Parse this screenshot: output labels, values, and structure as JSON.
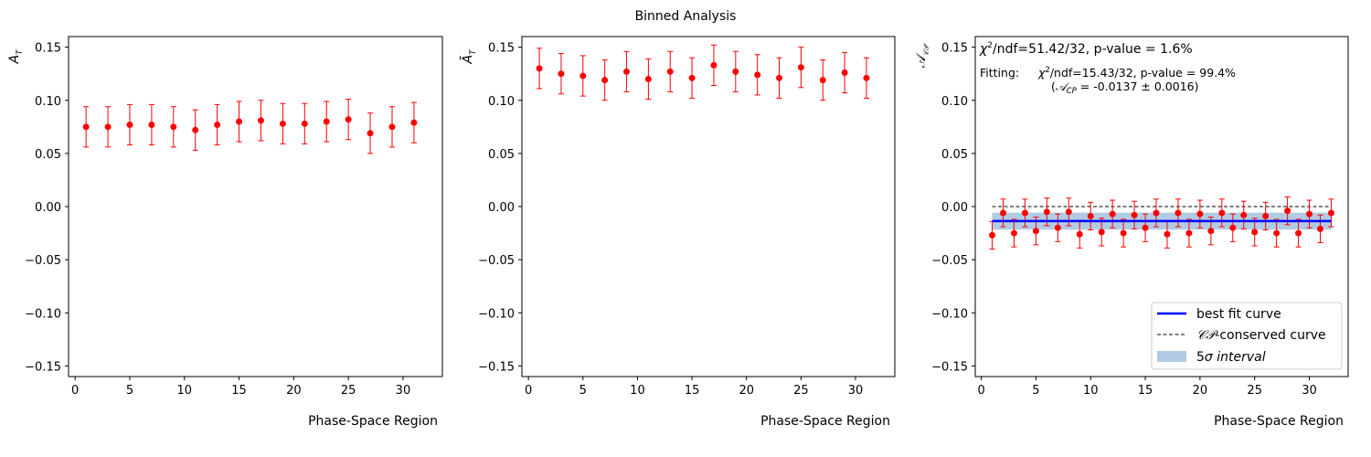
{
  "title": "Binned Analysis",
  "colors": {
    "points": "#ff0000",
    "fit": "#0000ff",
    "band": "#b0cbe3",
    "conserved": "#000000"
  },
  "panels": [
    {
      "id": "AT",
      "ylabel": "A_T",
      "xlabel": "Phase-Space Region"
    },
    {
      "id": "AbarT",
      "ylabel": "Ā_T",
      "xlabel": "Phase-Space Region"
    },
    {
      "id": "ACP",
      "ylabel": "𝒜_CP",
      "xlabel": "Phase-Space Region"
    }
  ],
  "annotations": {
    "chi2_text": "/ndf=51.42/32, p-value = 1.6%",
    "fit_label": "Fitting:",
    "fit_chi2_text": "/ndf=15.43/32, p-value = 99.4%",
    "fit_acp_text": " = -0.0137 ± 0.0016)"
  },
  "legend": {
    "best_fit": "best fit curve",
    "conserved": "-conserved curve",
    "interval": "σ interval"
  },
  "chart_data": [
    {
      "type": "scatter",
      "title": "Binned Analysis",
      "xlabel": "Phase-Space Region",
      "ylabel": "A_T",
      "xlim": [
        -0.6,
        33.6
      ],
      "ylim": [
        -0.16,
        0.16
      ],
      "xticks": [
        0,
        5,
        10,
        15,
        20,
        25,
        30
      ],
      "yticks": [
        -0.15,
        -0.1,
        -0.05,
        0.0,
        0.05,
        0.1,
        0.15
      ],
      "tick_labels_y": [
        "−0.15",
        "−0.10",
        "−0.05",
        "0.00",
        "0.05",
        "0.10",
        "0.15"
      ],
      "x": [
        1,
        3,
        5,
        7,
        9,
        11,
        13,
        15,
        17,
        19,
        21,
        23,
        25,
        27,
        29,
        31
      ],
      "y": [
        0.075,
        0.075,
        0.077,
        0.077,
        0.075,
        0.072,
        0.077,
        0.08,
        0.081,
        0.078,
        0.078,
        0.08,
        0.082,
        0.069,
        0.075,
        0.079
      ],
      "yerr": 0.019
    },
    {
      "type": "scatter",
      "xlabel": "Phase-Space Region",
      "ylabel": "Ā_T",
      "xlim": [
        -0.6,
        33.6
      ],
      "ylim": [
        -0.16,
        0.16
      ],
      "xticks": [
        0,
        5,
        10,
        15,
        20,
        25,
        30
      ],
      "yticks": [
        -0.15,
        -0.1,
        -0.05,
        0.0,
        0.05,
        0.1,
        0.15
      ],
      "tick_labels_y": [
        "−0.15",
        "−0.10",
        "−0.05",
        "0.00",
        "0.05",
        "0.10",
        "0.15"
      ],
      "x": [
        1,
        3,
        5,
        7,
        9,
        11,
        13,
        15,
        17,
        19,
        21,
        23,
        25,
        27,
        29,
        31
      ],
      "y": [
        0.13,
        0.125,
        0.123,
        0.119,
        0.127,
        0.12,
        0.127,
        0.121,
        0.133,
        0.127,
        0.124,
        0.121,
        0.131,
        0.119,
        0.126,
        0.121
      ],
      "yerr": 0.019
    },
    {
      "type": "scatter",
      "xlabel": "Phase-Space Region",
      "ylabel": "𝒜_CP",
      "xlim": [
        -0.55,
        33.55
      ],
      "ylim": [
        -0.16,
        0.16
      ],
      "xticks": [
        0,
        5,
        10,
        15,
        20,
        25,
        30
      ],
      "yticks": [
        -0.15,
        -0.1,
        -0.05,
        0.0,
        0.05,
        0.1,
        0.15
      ],
      "tick_labels_y": [
        "−0.15",
        "−0.10",
        "−0.05",
        "0.00",
        "0.05",
        "0.10",
        "0.15"
      ],
      "x": [
        1,
        2,
        3,
        4,
        5,
        6,
        7,
        8,
        9,
        10,
        11,
        12,
        13,
        14,
        15,
        16,
        17,
        18,
        19,
        20,
        21,
        22,
        23,
        24,
        25,
        26,
        27,
        28,
        29,
        30,
        31,
        32
      ],
      "y": [
        -0.027,
        -0.006,
        -0.025,
        -0.006,
        -0.023,
        -0.005,
        -0.02,
        -0.005,
        -0.026,
        -0.009,
        -0.024,
        -0.007,
        -0.025,
        -0.008,
        -0.02,
        -0.006,
        -0.026,
        -0.006,
        -0.025,
        -0.007,
        -0.023,
        -0.006,
        -0.02,
        -0.008,
        -0.024,
        -0.009,
        -0.025,
        -0.004,
        -0.025,
        -0.007,
        -0.021,
        -0.006
      ],
      "yerr": 0.013,
      "best_fit": -0.0137,
      "best_fit_err": 0.0016,
      "band_sigma": 5,
      "conserved": 0.0,
      "line_x_range": [
        1,
        32
      ],
      "legend_location": "lower right"
    }
  ]
}
